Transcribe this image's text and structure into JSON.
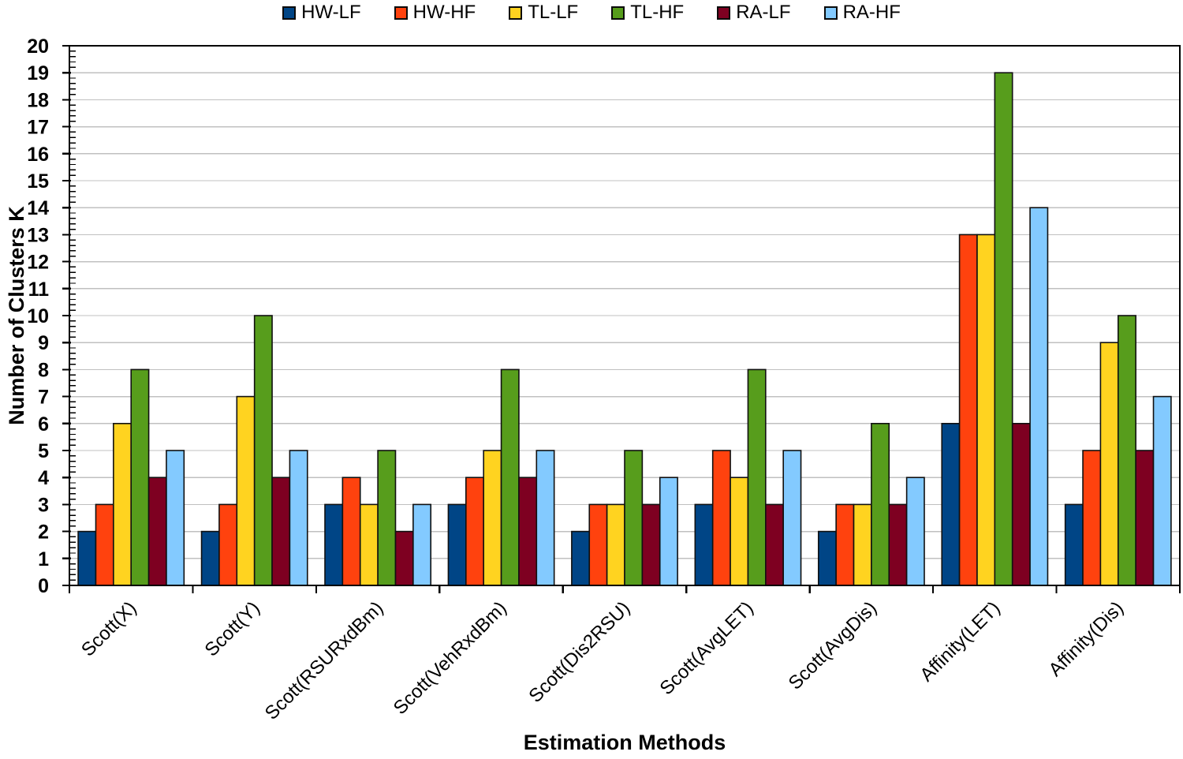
{
  "chart_data": {
    "type": "bar",
    "title": "",
    "xlabel": "Estimation Methods",
    "ylabel": "Number of Clusters K",
    "ylim": [
      0,
      20
    ],
    "ytick_step": 1,
    "yminor_step": 0.2,
    "grid": true,
    "legend_position": "top-center",
    "categories": [
      "Scott(X)",
      "Scott(Y)",
      "Scott(RSURxdBm)",
      "Scott(VehRxdBm)",
      "Scott(Dis2RSU)",
      "Scott(AvgLET)",
      "Scott(AvgDis)",
      "Affinity(LET)",
      "Affinity(Dis)"
    ],
    "series": [
      {
        "name": "HW-LF",
        "color": "#004586",
        "values": [
          2,
          2,
          3,
          3,
          2,
          3,
          2,
          6,
          3
        ]
      },
      {
        "name": "HW-HF",
        "color": "#FF420E",
        "values": [
          3,
          3,
          4,
          4,
          3,
          5,
          3,
          13,
          5
        ]
      },
      {
        "name": "TL-LF",
        "color": "#FFD320",
        "values": [
          6,
          7,
          3,
          5,
          3,
          4,
          3,
          13,
          9
        ]
      },
      {
        "name": "TL-HF",
        "color": "#579D1C",
        "values": [
          8,
          10,
          5,
          8,
          5,
          8,
          6,
          19,
          10
        ]
      },
      {
        "name": "RA-LF",
        "color": "#7E0021",
        "values": [
          4,
          4,
          2,
          4,
          3,
          3,
          3,
          6,
          5
        ]
      },
      {
        "name": "RA-HF",
        "color": "#83CAFF",
        "values": [
          5,
          5,
          3,
          5,
          4,
          5,
          4,
          14,
          7
        ]
      }
    ],
    "colors": {
      "axis": "#000000",
      "gridline": "#c0c0c0",
      "bar_border": "#101010",
      "background": "#ffffff"
    }
  }
}
